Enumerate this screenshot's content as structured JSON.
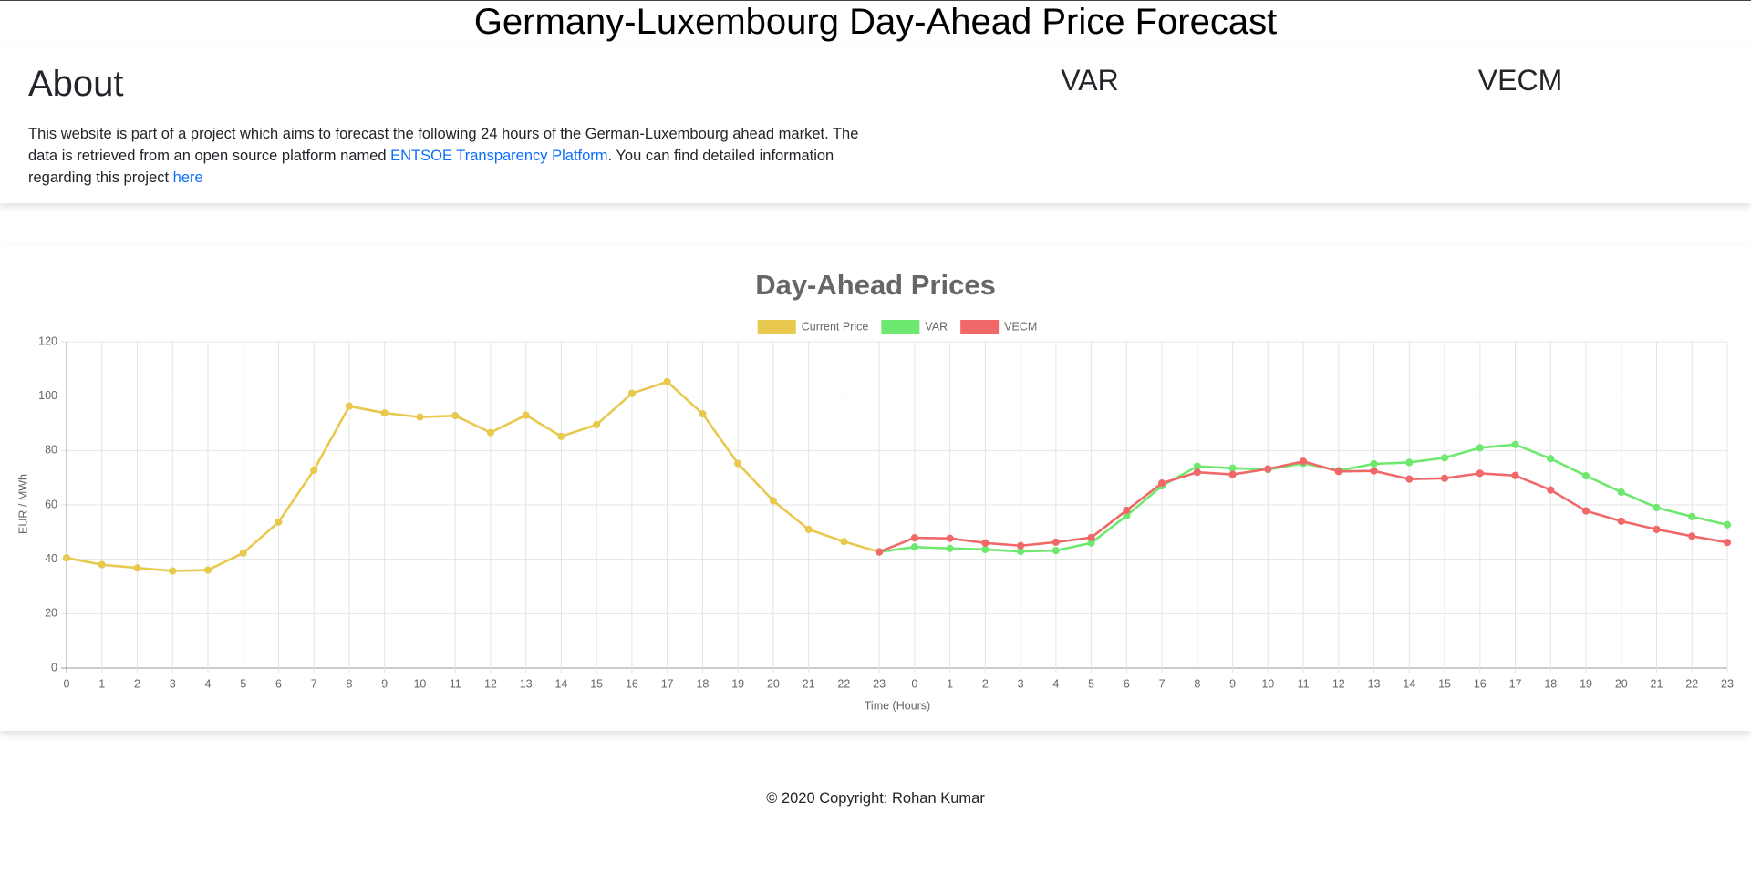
{
  "header": {
    "title": "Germany-Luxembourg Day-Ahead Price Forecast"
  },
  "about": {
    "heading": "About",
    "text_1": "This website is part of a project which aims to forecast the following 24 hours of the German-Luxembourg ahead market. The data is retrieved from an open source platform named ",
    "link_1": "ENTSOE Transparency Platform",
    "text_2": ". You can find detailed information regarding this project ",
    "link_2": "here"
  },
  "models": [
    "VAR",
    "VECM"
  ],
  "chart_data": {
    "type": "line",
    "title": "Day-Ahead Prices",
    "x_label": "Time (Hours)",
    "y_label": "EUR / MWh",
    "categories": [
      "0",
      "1",
      "2",
      "3",
      "4",
      "5",
      "6",
      "7",
      "8",
      "9",
      "10",
      "11",
      "12",
      "13",
      "14",
      "15",
      "16",
      "17",
      "18",
      "19",
      "20",
      "21",
      "22",
      "23",
      "0",
      "1",
      "2",
      "3",
      "4",
      "5",
      "6",
      "7",
      "8",
      "9",
      "10",
      "11",
      "12",
      "13",
      "14",
      "15",
      "16",
      "17",
      "18",
      "19",
      "20",
      "21",
      "22",
      "23"
    ],
    "series": [
      {
        "name": "Current Price",
        "color": "#e8c94e",
        "values": [
          40.5,
          38,
          36.8,
          35.7,
          36,
          42.3,
          53.7,
          72.8,
          96.3,
          93.8,
          92.3,
          92.8,
          86.6,
          93,
          85.2,
          89.5,
          101,
          105.3,
          93.5,
          75.2,
          61.5,
          51,
          46.5,
          42.7,
          null,
          null,
          null,
          null,
          null,
          null,
          null,
          null,
          null,
          null,
          null,
          null,
          null,
          null,
          null,
          null,
          null,
          null,
          null,
          null,
          null,
          null,
          null,
          null
        ]
      },
      {
        "name": "VAR",
        "color": "#6ee86e",
        "values": [
          null,
          null,
          null,
          null,
          null,
          null,
          null,
          null,
          null,
          null,
          null,
          null,
          null,
          null,
          null,
          null,
          null,
          null,
          null,
          null,
          null,
          null,
          null,
          42.7,
          44.5,
          44,
          43.6,
          42.9,
          43.2,
          46,
          56,
          67,
          74.2,
          73.5,
          73,
          75.3,
          72.6,
          75.1,
          75.6,
          77.3,
          81,
          82.2,
          77,
          70.7,
          64.7,
          59,
          55.7,
          52.7
        ]
      },
      {
        "name": "VECM",
        "color": "#f06868",
        "values": [
          null,
          null,
          null,
          null,
          null,
          null,
          null,
          null,
          null,
          null,
          null,
          null,
          null,
          null,
          null,
          null,
          null,
          null,
          null,
          null,
          null,
          null,
          null,
          42.7,
          47.9,
          47.7,
          46,
          45,
          46.3,
          48,
          58,
          68,
          72,
          71.2,
          73.2,
          76,
          72.3,
          72.5,
          69.5,
          69.8,
          71.6,
          70.8,
          65.5,
          57.8,
          54,
          51,
          48.5,
          46.2
        ]
      }
    ],
    "ylim": [
      0,
      120
    ],
    "yticks": [
      0,
      20,
      40,
      60,
      80,
      100,
      120
    ],
    "grid": true,
    "legend": "top"
  },
  "footer": {
    "text": "© 2020 Copyright: Rohan Kumar"
  }
}
